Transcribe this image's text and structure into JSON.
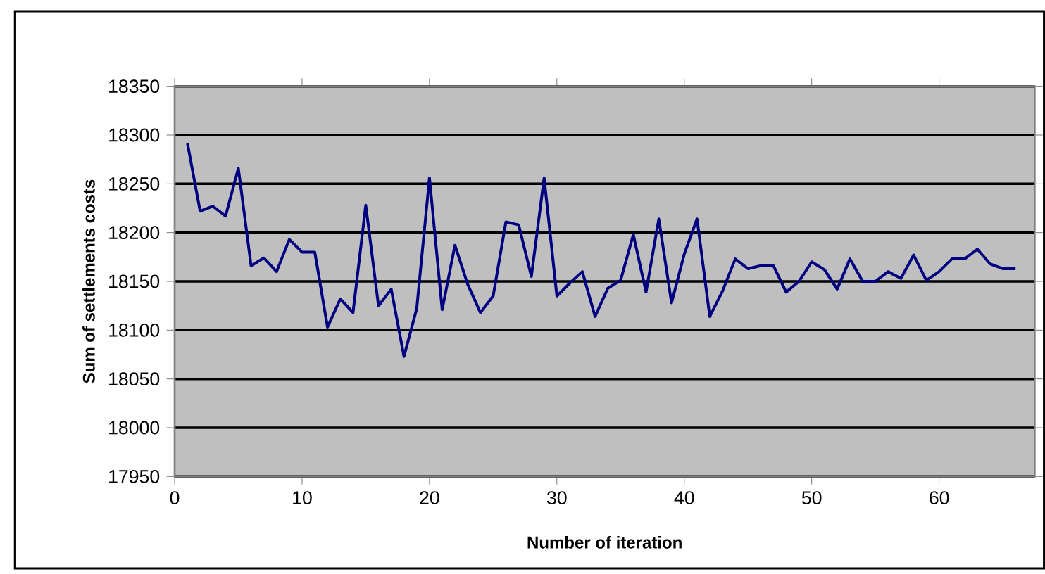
{
  "chart_data": {
    "type": "line",
    "xlabel": "Number of iteration",
    "ylabel": "Sum of settlements costs",
    "x": [
      1,
      2,
      3,
      4,
      5,
      6,
      7,
      8,
      9,
      10,
      11,
      12,
      13,
      14,
      15,
      16,
      17,
      18,
      19,
      20,
      21,
      22,
      23,
      24,
      25,
      26,
      27,
      28,
      29,
      30,
      31,
      32,
      33,
      34,
      35,
      36,
      37,
      38,
      39,
      40,
      41,
      42,
      43,
      44,
      45,
      46,
      47,
      48,
      49,
      50,
      51,
      52,
      53,
      54,
      55,
      56,
      57,
      58,
      59,
      60,
      61,
      62,
      63,
      64,
      65,
      66
    ],
    "series": [
      {
        "color": "#000080",
        "values": [
          18292,
          18222,
          18227,
          18217,
          18266,
          18166,
          18174,
          18160,
          18193,
          18180,
          18180,
          18103,
          18132,
          18118,
          18228,
          18125,
          18142,
          18073,
          18122,
          18256,
          18121,
          18187,
          18147,
          18118,
          18135,
          18211,
          18208,
          18155,
          18256,
          18135,
          18148,
          18160,
          18114,
          18143,
          18151,
          18198,
          18139,
          18214,
          18128,
          18178,
          18214,
          18114,
          18140,
          18173,
          18163,
          18166,
          18166,
          18139,
          18150,
          18170,
          18162,
          18142,
          18173,
          18150,
          18150,
          18160,
          18153,
          18177,
          18151,
          18160,
          18173,
          18173,
          18183,
          18168,
          18163,
          18163
        ]
      }
    ],
    "xlim": [
      0,
      67.5
    ],
    "xticks": [
      0,
      10,
      20,
      30,
      40,
      50,
      60
    ],
    "ylim": [
      17950,
      18350
    ],
    "yticks": [
      17950,
      18000,
      18050,
      18100,
      18150,
      18200,
      18250,
      18300,
      18350
    ],
    "grid": "y",
    "marker": "none",
    "line_style": "solid"
  }
}
